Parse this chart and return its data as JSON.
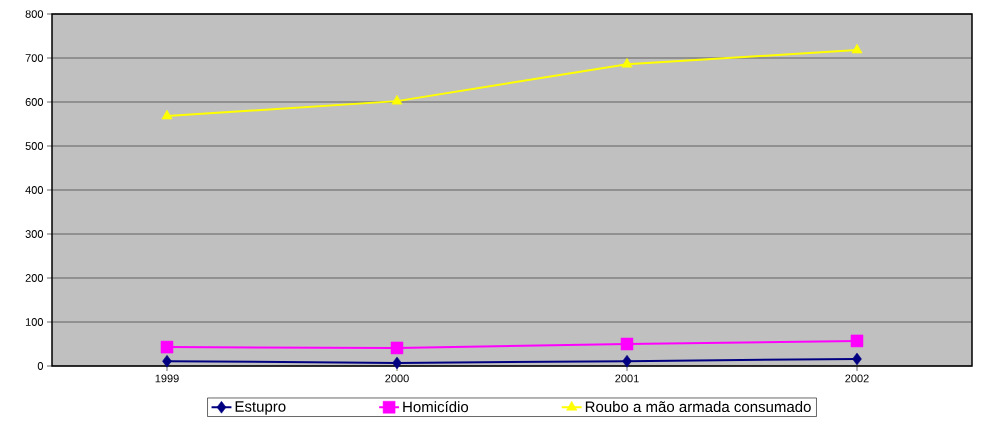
{
  "chart_data": {
    "type": "line",
    "categories": [
      "1999",
      "2000",
      "2001",
      "2002"
    ],
    "series": [
      {
        "name": "Estupro",
        "color": "#000080",
        "marker": "diamond",
        "values": [
          11,
          7,
          11,
          16
        ]
      },
      {
        "name": "Homicídio",
        "color": "#ff00ff",
        "marker": "square",
        "values": [
          43,
          41,
          50,
          57
        ]
      },
      {
        "name": "Roubo a mão armada consumado",
        "color": "#ffff00",
        "marker": "triangle",
        "values": [
          568,
          602,
          686,
          718
        ]
      }
    ],
    "ylim": [
      0,
      800
    ],
    "yticks": [
      0,
      100,
      200,
      300,
      400,
      500,
      600,
      700,
      800
    ],
    "grid": "y",
    "legend": "bottom",
    "line_style": "solid"
  }
}
